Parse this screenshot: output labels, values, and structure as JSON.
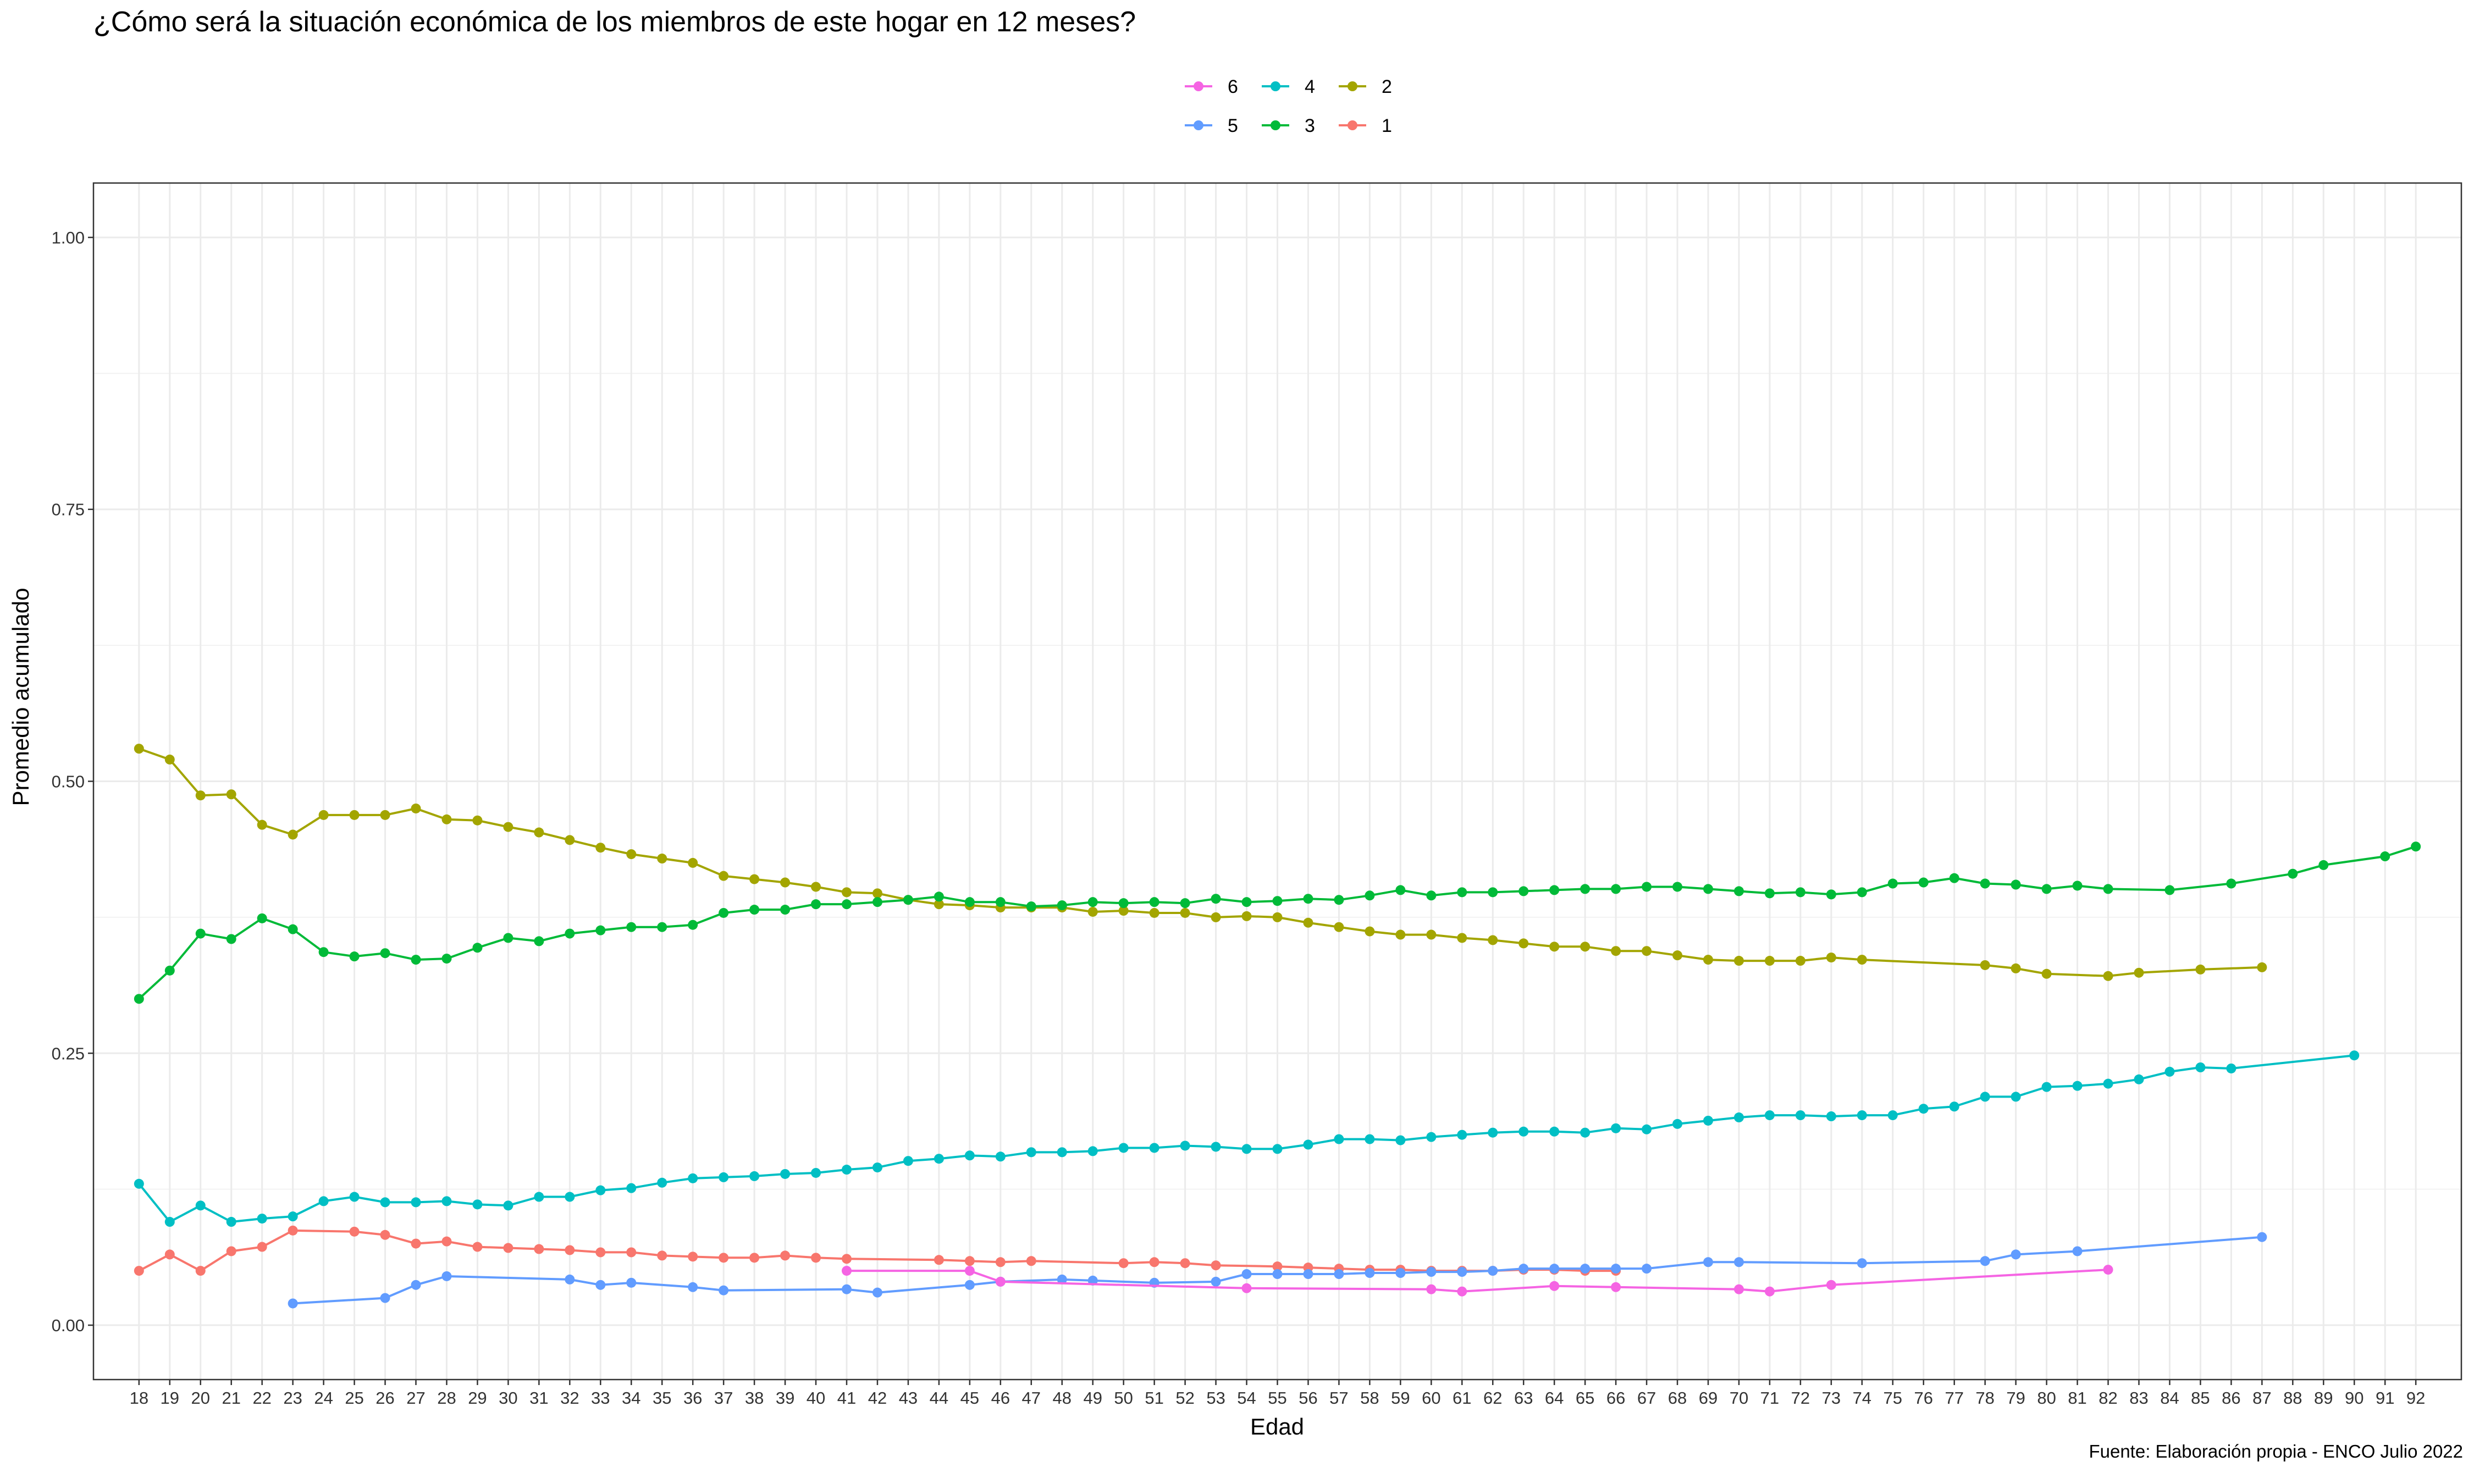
{
  "chart_data": {
    "type": "line",
    "title": "¿Cómo será la situación económica de los miembros de este hogar en 12 meses?",
    "xlabel": "Edad",
    "ylabel": "Promedio acumulado",
    "caption": "Fuente: Elaboración propia - ENCO Julio 2022",
    "xlim": [
      18,
      92
    ],
    "ylim": [
      -0.05,
      1.05
    ],
    "x_ticks": [
      "18",
      "19",
      "20",
      "21",
      "22",
      "23",
      "24",
      "25",
      "26",
      "27",
      "28",
      "29",
      "30",
      "31",
      "32",
      "33",
      "34",
      "35",
      "36",
      "37",
      "38",
      "39",
      "40",
      "41",
      "42",
      "43",
      "44",
      "45",
      "46",
      "47",
      "48",
      "49",
      "50",
      "51",
      "52",
      "53",
      "54",
      "55",
      "56",
      "57",
      "58",
      "59",
      "60",
      "61",
      "62",
      "63",
      "64",
      "65",
      "66",
      "67",
      "68",
      "69",
      "70",
      "71",
      "72",
      "73",
      "74",
      "75",
      "76",
      "77",
      "78",
      "79",
      "80",
      "81",
      "82",
      "83",
      "84",
      "85",
      "86",
      "87",
      "88",
      "89",
      "90",
      "91",
      "92"
    ],
    "y_ticks": [
      "0.00",
      "0.25",
      "0.50",
      "0.75",
      "1.00"
    ],
    "grid": true,
    "legend_position": "top",
    "legend_order": [
      "6",
      "5",
      "4",
      "3",
      "2",
      "1"
    ],
    "series": [
      {
        "name": "2",
        "color": "#A3A500",
        "x": [
          18,
          19,
          20,
          21,
          22,
          23,
          24,
          25,
          26,
          27,
          28,
          29,
          30,
          31,
          32,
          33,
          34,
          35,
          36,
          37,
          38,
          39,
          40,
          41,
          42,
          43,
          44,
          45,
          46,
          47,
          48,
          49,
          50,
          51,
          52,
          53,
          54,
          55,
          56,
          57,
          58,
          59,
          60,
          61,
          62,
          63,
          64,
          65,
          66,
          67,
          68,
          69,
          70,
          71,
          72,
          73,
          74,
          78,
          79,
          80,
          82,
          83,
          85,
          87
        ],
        "y": [
          0.53,
          0.52,
          0.487,
          0.488,
          0.46,
          0.451,
          0.469,
          0.469,
          0.469,
          0.475,
          0.465,
          0.464,
          0.458,
          0.453,
          0.446,
          0.439,
          0.433,
          0.429,
          0.425,
          0.413,
          0.41,
          0.407,
          0.403,
          0.398,
          0.397,
          0.391,
          0.387,
          0.386,
          0.384,
          0.384,
          0.384,
          0.38,
          0.381,
          0.379,
          0.379,
          0.375,
          0.376,
          0.375,
          0.37,
          0.366,
          0.362,
          0.359,
          0.359,
          0.356,
          0.354,
          0.351,
          0.348,
          0.348,
          0.344,
          0.344,
          0.34,
          0.336,
          0.335,
          0.335,
          0.335,
          0.338,
          0.336,
          0.331,
          0.328,
          0.323,
          0.321,
          0.324,
          0.327,
          0.329
        ]
      },
      {
        "name": "3",
        "color": "#00BA38",
        "x": [
          18,
          19,
          20,
          21,
          22,
          23,
          24,
          25,
          26,
          27,
          28,
          29,
          30,
          31,
          32,
          33,
          34,
          35,
          36,
          37,
          38,
          39,
          40,
          41,
          42,
          43,
          44,
          45,
          46,
          47,
          48,
          49,
          50,
          51,
          52,
          53,
          54,
          55,
          56,
          57,
          58,
          59,
          60,
          61,
          62,
          63,
          64,
          65,
          66,
          67,
          68,
          69,
          70,
          71,
          72,
          73,
          74,
          75,
          76,
          77,
          78,
          79,
          80,
          81,
          82,
          84,
          86,
          88,
          89,
          91,
          92
        ],
        "y": [
          0.3,
          0.326,
          0.36,
          0.355,
          0.374,
          0.364,
          0.343,
          0.339,
          0.342,
          0.336,
          0.337,
          0.347,
          0.356,
          0.353,
          0.36,
          0.363,
          0.366,
          0.366,
          0.368,
          0.379,
          0.382,
          0.382,
          0.387,
          0.387,
          0.389,
          0.391,
          0.394,
          0.389,
          0.389,
          0.385,
          0.386,
          0.389,
          0.388,
          0.389,
          0.388,
          0.392,
          0.389,
          0.39,
          0.392,
          0.391,
          0.395,
          0.4,
          0.395,
          0.398,
          0.398,
          0.399,
          0.4,
          0.401,
          0.401,
          0.403,
          0.403,
          0.401,
          0.399,
          0.397,
          0.398,
          0.396,
          0.398,
          0.406,
          0.407,
          0.411,
          0.406,
          0.405,
          0.401,
          0.404,
          0.401,
          0.4,
          0.406,
          0.415,
          0.423,
          0.431,
          0.44
        ]
      },
      {
        "name": "4",
        "color": "#00BFC4",
        "x": [
          18,
          19,
          20,
          21,
          22,
          23,
          24,
          25,
          26,
          27,
          28,
          29,
          30,
          31,
          32,
          33,
          34,
          35,
          36,
          37,
          38,
          39,
          40,
          41,
          42,
          43,
          44,
          45,
          46,
          47,
          48,
          49,
          50,
          51,
          52,
          53,
          54,
          55,
          56,
          57,
          58,
          59,
          60,
          61,
          62,
          63,
          64,
          65,
          66,
          67,
          68,
          69,
          70,
          71,
          72,
          73,
          74,
          75,
          76,
          77,
          78,
          79,
          80,
          81,
          82,
          83,
          84,
          85,
          86,
          90
        ],
        "y": [
          0.13,
          0.095,
          0.11,
          0.095,
          0.098,
          0.1,
          0.114,
          0.118,
          0.113,
          0.113,
          0.114,
          0.111,
          0.11,
          0.118,
          0.118,
          0.124,
          0.126,
          0.131,
          0.135,
          0.136,
          0.137,
          0.139,
          0.14,
          0.143,
          0.145,
          0.151,
          0.153,
          0.156,
          0.155,
          0.159,
          0.159,
          0.16,
          0.163,
          0.163,
          0.165,
          0.164,
          0.162,
          0.162,
          0.166,
          0.171,
          0.171,
          0.17,
          0.173,
          0.175,
          0.177,
          0.178,
          0.178,
          0.177,
          0.181,
          0.18,
          0.185,
          0.188,
          0.191,
          0.193,
          0.193,
          0.192,
          0.193,
          0.193,
          0.199,
          0.201,
          0.21,
          0.21,
          0.219,
          0.22,
          0.222,
          0.226,
          0.233,
          0.237,
          0.236,
          0.248
        ]
      },
      {
        "name": "1",
        "color": "#F8766D",
        "x": [
          18,
          19,
          20,
          21,
          22,
          23,
          25,
          26,
          27,
          28,
          29,
          30,
          31,
          32,
          33,
          34,
          35,
          36,
          37,
          38,
          39,
          40,
          41,
          44,
          45,
          46,
          47,
          50,
          51,
          52,
          53,
          55,
          56,
          57,
          58,
          59,
          60,
          61,
          62,
          63,
          64,
          65,
          66
        ],
        "y": [
          0.05,
          0.065,
          0.05,
          0.068,
          0.072,
          0.087,
          0.086,
          0.083,
          0.075,
          0.077,
          0.072,
          0.071,
          0.07,
          0.069,
          0.067,
          0.067,
          0.064,
          0.063,
          0.062,
          0.062,
          0.064,
          0.062,
          0.061,
          0.06,
          0.059,
          0.058,
          0.059,
          0.057,
          0.058,
          0.057,
          0.055,
          0.054,
          0.053,
          0.052,
          0.051,
          0.051,
          0.05,
          0.05,
          0.05,
          0.051,
          0.051,
          0.05,
          0.05
        ]
      },
      {
        "name": "5",
        "color": "#619CFF",
        "x": [
          23,
          26,
          27,
          28,
          32,
          33,
          34,
          36,
          37,
          41,
          42,
          45,
          46,
          48,
          49,
          51,
          53,
          54,
          55,
          56,
          57,
          58,
          59,
          60,
          61,
          62,
          63,
          64,
          65,
          66,
          67,
          69,
          70,
          74,
          78,
          79,
          81,
          87
        ],
        "y": [
          0.02,
          0.025,
          0.037,
          0.045,
          0.042,
          0.037,
          0.039,
          0.035,
          0.032,
          0.033,
          0.03,
          0.037,
          0.04,
          0.042,
          0.041,
          0.039,
          0.04,
          0.047,
          0.047,
          0.047,
          0.047,
          0.048,
          0.048,
          0.049,
          0.049,
          0.05,
          0.052,
          0.052,
          0.052,
          0.052,
          0.052,
          0.058,
          0.058,
          0.057,
          0.059,
          0.065,
          0.068,
          0.081
        ]
      },
      {
        "name": "6",
        "color": "#F564E3",
        "x": [
          41,
          45,
          46,
          54,
          60,
          61,
          64,
          66,
          70,
          71,
          73,
          82
        ],
        "y": [
          0.05,
          0.05,
          0.04,
          0.034,
          0.033,
          0.031,
          0.036,
          0.035,
          0.033,
          0.031,
          0.037,
          0.051
        ]
      }
    ]
  }
}
